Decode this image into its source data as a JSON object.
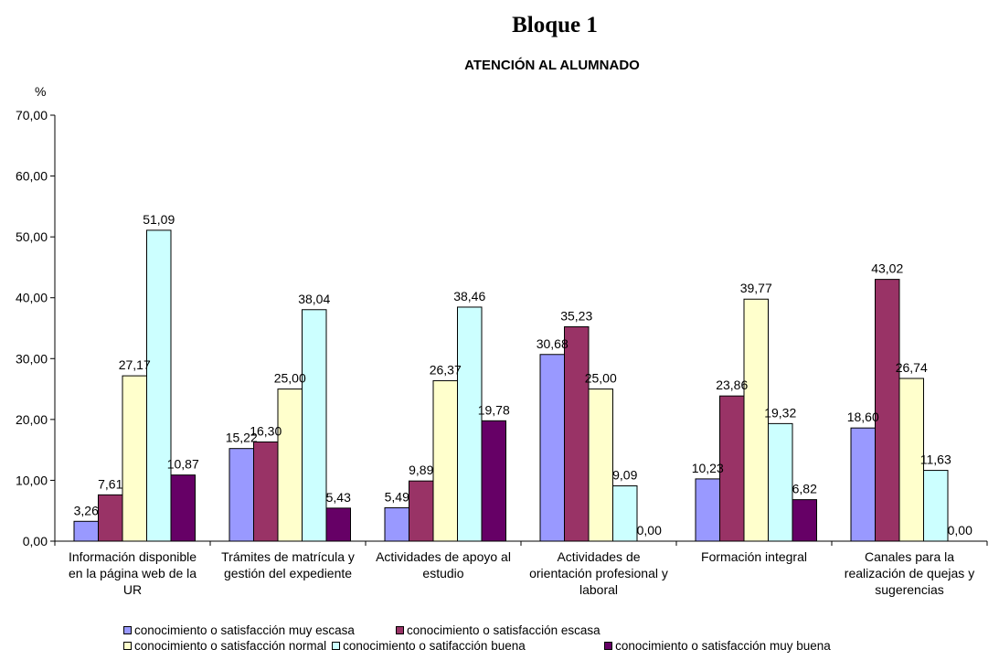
{
  "page_heading": "Bloque 1",
  "chart_data": {
    "type": "bar",
    "title": "ATENCIÓN AL ALUMNADO",
    "ylabel": "%",
    "xlabel": "",
    "ylim": [
      0,
      70
    ],
    "yticks": [
      "0,00",
      "10,00",
      "20,00",
      "30,00",
      "40,00",
      "50,00",
      "60,00",
      "70,00"
    ],
    "grid": false,
    "legend": "bottom",
    "categories": [
      [
        "Información disponible",
        "en la página web de la",
        "UR"
      ],
      [
        "Trámites de matrícula y",
        "gestión del expediente"
      ],
      [
        "Actividades de apoyo al",
        "estudio"
      ],
      [
        "Actividades de",
        "orientación profesional y",
        "laboral"
      ],
      [
        "Formación integral"
      ],
      [
        "Canales para la",
        "realización de quejas y",
        "sugerencias"
      ]
    ],
    "series": [
      {
        "name": "conocimiento o satisfacción muy escasa",
        "color": "#9999ff",
        "values": [
          3.26,
          15.22,
          5.49,
          30.68,
          10.23,
          18.6
        ],
        "labels": [
          "3,26",
          "15,22",
          "5,49",
          "30,68",
          "10,23",
          "18,60"
        ]
      },
      {
        "name": "conocimiento o satisfacción escasa",
        "color": "#993366",
        "values": [
          7.61,
          16.3,
          9.89,
          35.23,
          23.86,
          43.02
        ],
        "labels": [
          "7,61",
          "16,30",
          "9,89",
          "35,23",
          "23,86",
          "43,02"
        ]
      },
      {
        "name": "conocimiento o satisfacción normal",
        "color": "#ffffcc",
        "values": [
          27.17,
          25.0,
          26.37,
          25.0,
          39.77,
          26.74
        ],
        "labels": [
          "27,17",
          "25,00",
          "26,37",
          "25,00",
          "39,77",
          "26,74"
        ]
      },
      {
        "name": "conocimiento o satifacción buena",
        "color": "#ccffff",
        "values": [
          51.09,
          38.04,
          38.46,
          9.09,
          19.32,
          11.63
        ],
        "labels": [
          "51,09",
          "38,04",
          "38,46",
          "9,09",
          "19,32",
          "11,63"
        ]
      },
      {
        "name": "conocimiento o satisfacción muy buena",
        "color": "#660066",
        "values": [
          10.87,
          5.43,
          19.78,
          0.0,
          6.82,
          0.0
        ],
        "labels": [
          "10,87",
          "5,43",
          "19,78",
          "0,00",
          "6,82",
          "0,00"
        ]
      }
    ]
  }
}
